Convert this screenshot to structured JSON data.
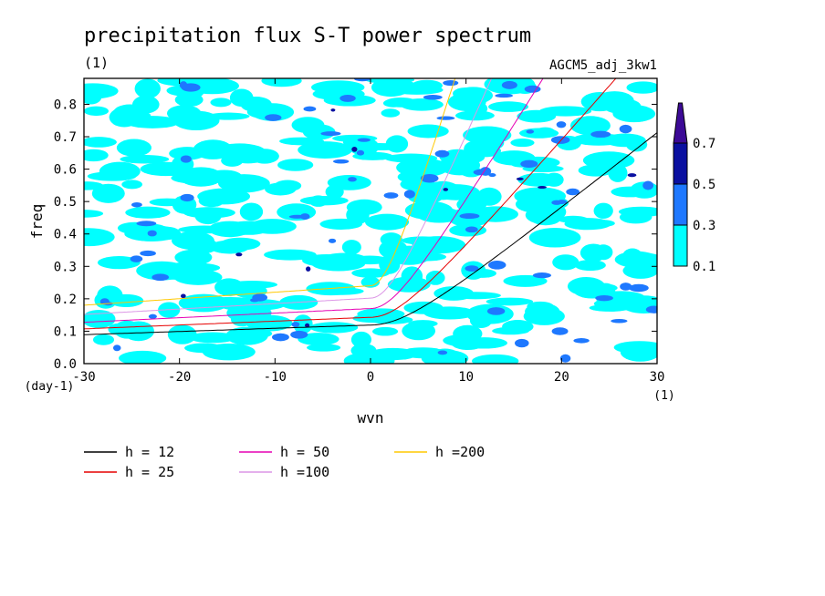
{
  "title": "precipitation flux S-T power spectrum",
  "title_unit": "(1)",
  "run_label": "AGCM5_adj_3kw1",
  "chart_data": {
    "type": "heatmap",
    "xlabel": "wvn",
    "ylabel": "freq",
    "x_unit": "(1)",
    "y_unit": "(day-1)",
    "xlim": [
      -30,
      30
    ],
    "ylim": [
      0,
      0.88
    ],
    "x_ticks": [
      -30,
      -20,
      -10,
      0,
      10,
      20,
      30
    ],
    "x_tick_labels": [
      "-30",
      "-20",
      "-10",
      "0",
      "10",
      "20",
      "30"
    ],
    "y_ticks": [
      0,
      0.1,
      0.2,
      0.3,
      0.4,
      0.5,
      0.6,
      0.7,
      0.8
    ],
    "y_tick_labels": [
      "0.0",
      "0.1",
      "0.2",
      "0.3",
      "0.4",
      "0.5",
      "0.6",
      "0.7",
      "0.8"
    ],
    "colorbar": {
      "levels": [
        0.1,
        0.3,
        0.5,
        0.7
      ],
      "labels": [
        "0.1",
        "0.3",
        "0.5",
        "0.7"
      ],
      "colors": [
        "#00ffff",
        "#1e78ff",
        "#0a10a0",
        "#3c0a96"
      ]
    },
    "series": [
      {
        "name": "h = 12",
        "color": "#000000",
        "h": 12
      },
      {
        "name": "h = 25",
        "color": "#e60000",
        "h": 25
      },
      {
        "name": "h = 50",
        "color": "#e600b4",
        "h": 50
      },
      {
        "name": "h =100",
        "color": "#dc96e6",
        "h": 100
      },
      {
        "name": "h =200",
        "color": "#ffc800",
        "h": 200
      }
    ]
  }
}
